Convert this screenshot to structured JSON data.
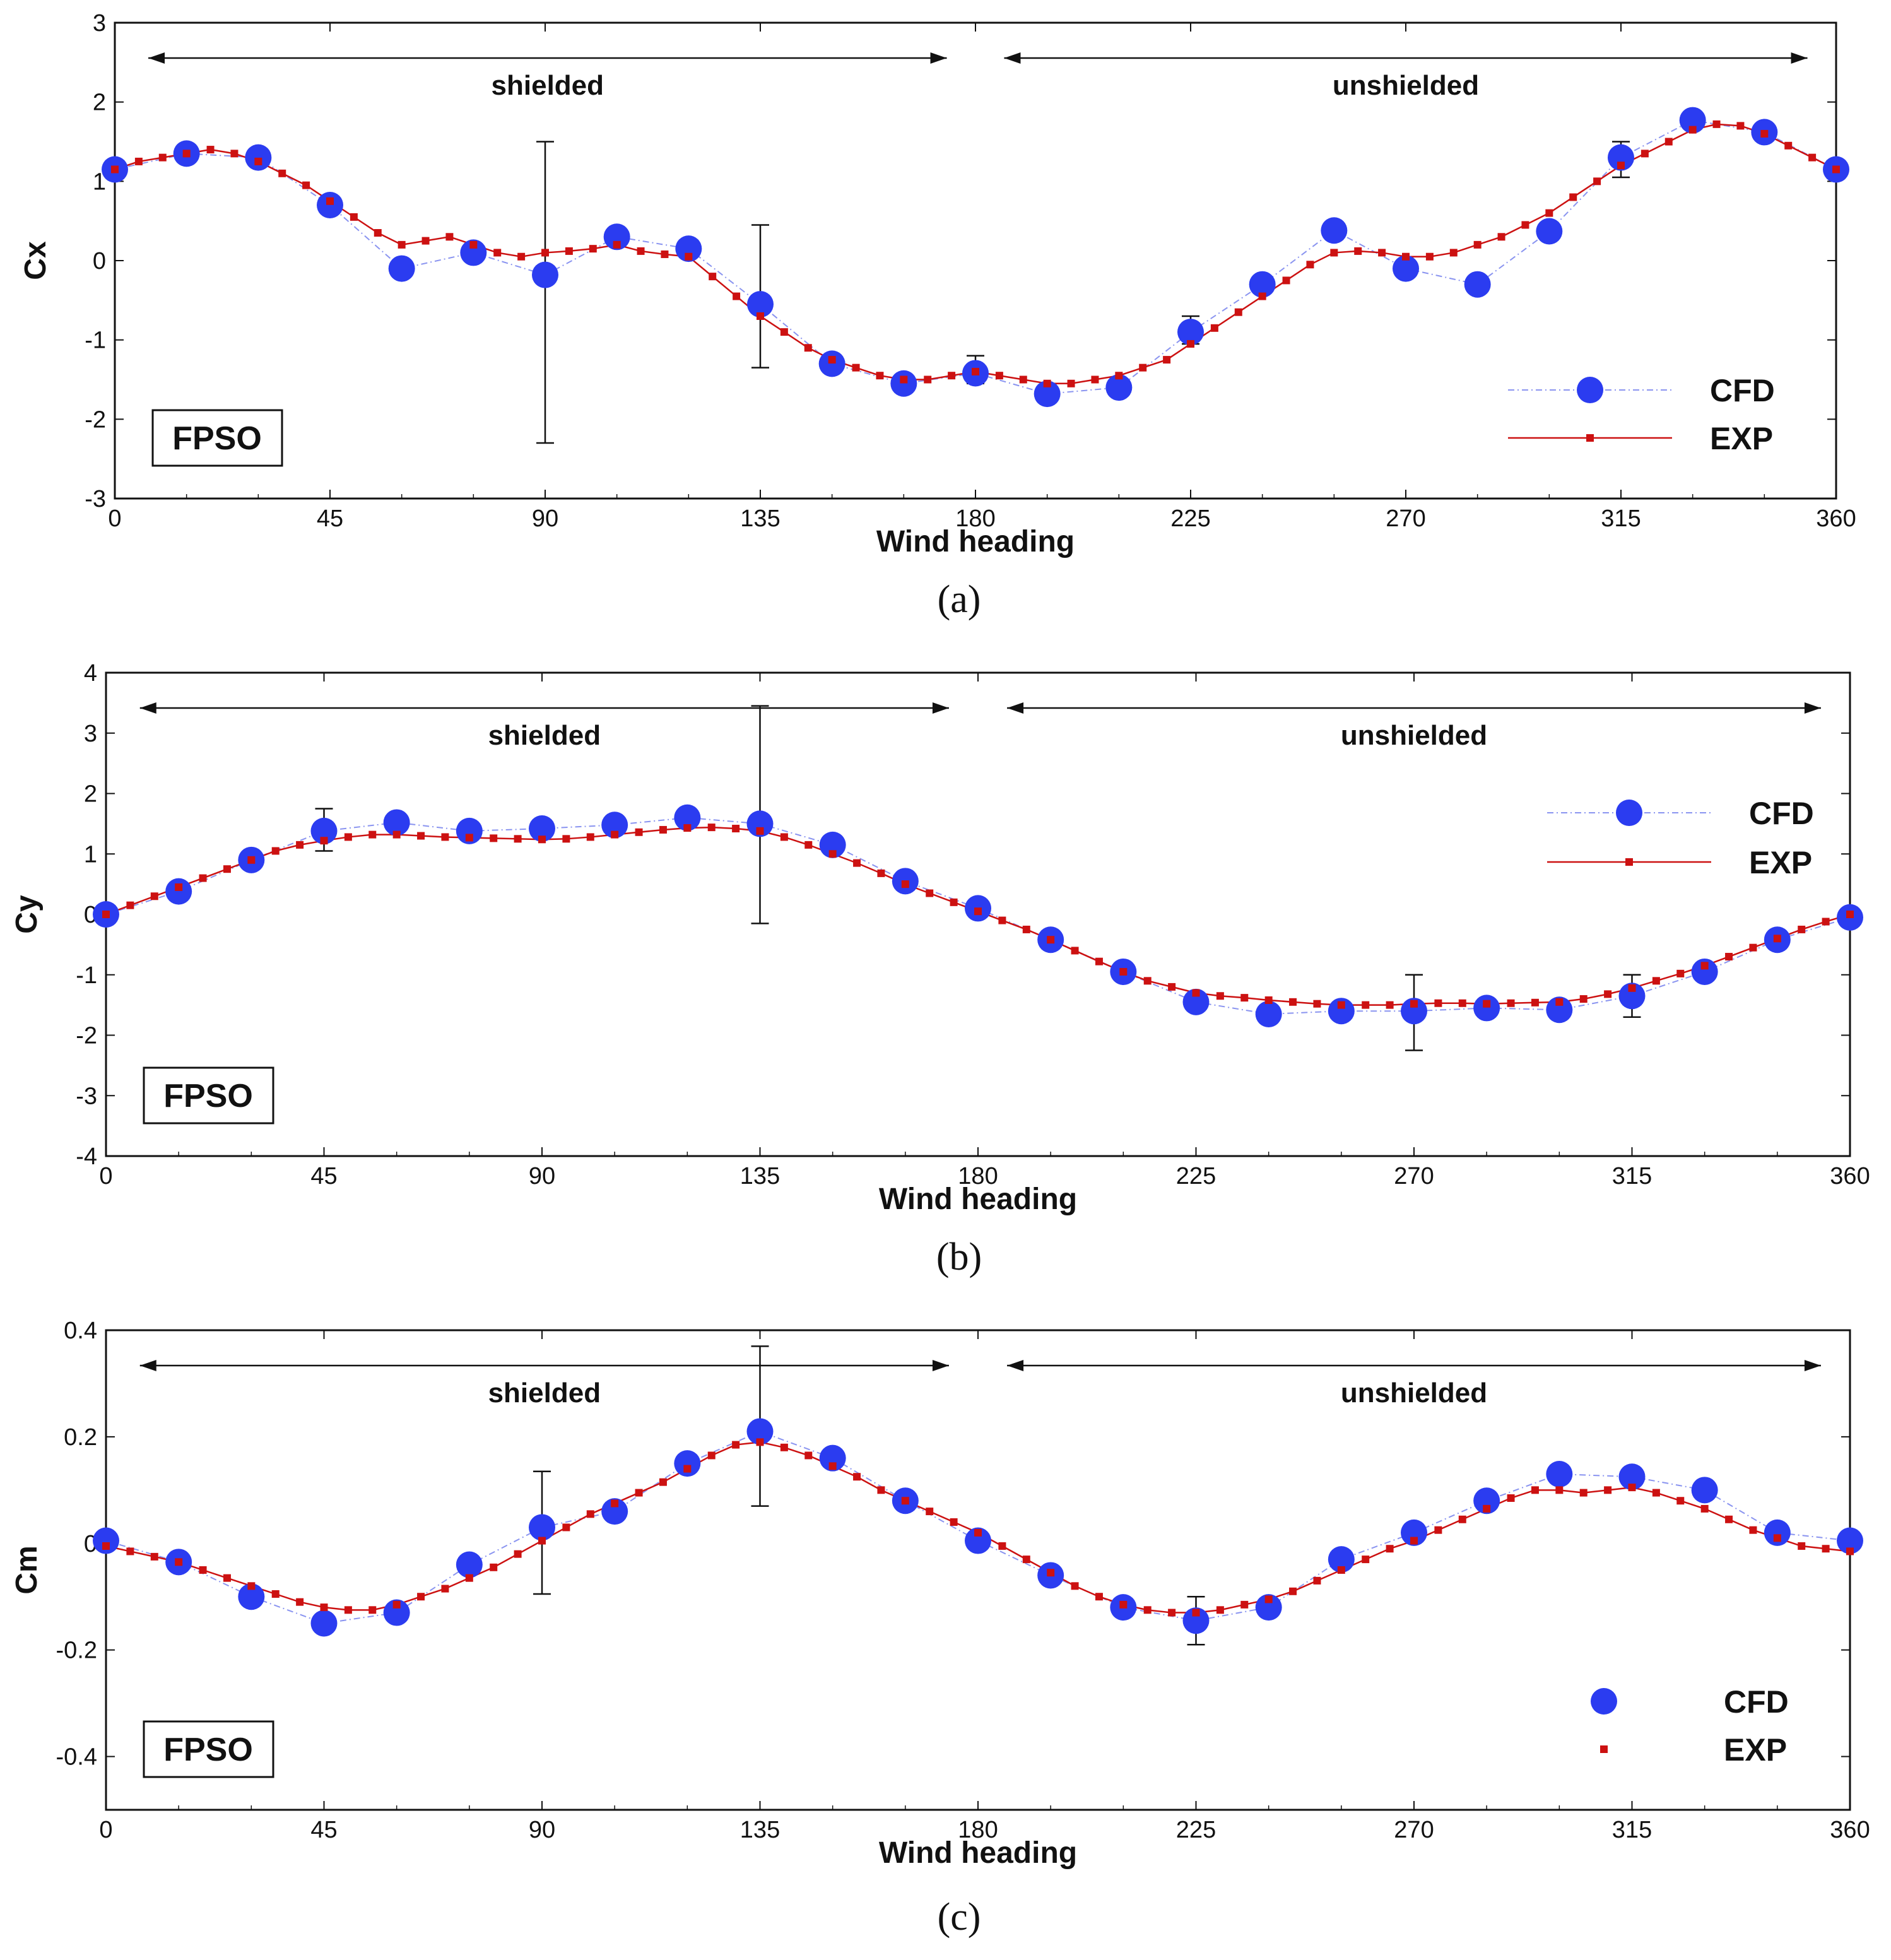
{
  "colors": {
    "cfd": "#2b3cf0",
    "cfd_line": "#8a94f0",
    "exp": "#cc1111",
    "axis": "#111111",
    "errorbar": "#111111"
  },
  "chart_data": [
    {
      "type": "scatter",
      "caption": "(a)",
      "caption_letter": "a",
      "xlabel": "Wind heading",
      "ylabel": "Cx",
      "xlim": [
        0,
        360
      ],
      "ylim": [
        -3,
        3
      ],
      "xticks": [
        "0",
        "45",
        "90",
        "135",
        "180",
        "225",
        "270",
        "315",
        "360"
      ],
      "yticks": [
        "-3",
        "-2",
        "-1",
        "0",
        "1",
        "2",
        "3"
      ],
      "regions": {
        "left": "shielded",
        "right": "unshielded"
      },
      "box_label": "FPSO",
      "legend_position": "bottom-right",
      "series": [
        {
          "name": "CFD",
          "x": [
            0,
            15,
            30,
            45,
            60,
            75,
            90,
            105,
            120,
            135,
            150,
            165,
            180,
            195,
            210,
            225,
            240,
            255,
            270,
            285,
            300,
            315,
            330,
            345,
            360
          ],
          "y": [
            1.15,
            1.35,
            1.3,
            0.7,
            -0.1,
            0.1,
            -0.18,
            0.3,
            0.15,
            -0.55,
            -1.3,
            -1.55,
            -1.42,
            -1.68,
            -1.6,
            -0.9,
            -0.3,
            0.38,
            -0.1,
            -0.3,
            0.37,
            1.3,
            1.77,
            1.62,
            1.15
          ]
        },
        {
          "name": "EXP",
          "x": [
            0,
            5,
            10,
            15,
            20,
            25,
            30,
            35,
            40,
            45,
            50,
            55,
            60,
            65,
            70,
            75,
            80,
            85,
            90,
            95,
            100,
            105,
            110,
            115,
            120,
            125,
            130,
            135,
            140,
            145,
            150,
            155,
            160,
            165,
            170,
            175,
            180,
            185,
            190,
            195,
            200,
            205,
            210,
            215,
            220,
            225,
            230,
            235,
            240,
            245,
            250,
            255,
            260,
            265,
            270,
            275,
            280,
            285,
            290,
            295,
            300,
            305,
            310,
            315,
            320,
            325,
            330,
            335,
            340,
            345,
            350,
            355,
            360
          ],
          "y": [
            1.15,
            1.25,
            1.3,
            1.35,
            1.4,
            1.35,
            1.25,
            1.1,
            0.95,
            0.75,
            0.55,
            0.35,
            0.2,
            0.25,
            0.3,
            0.2,
            0.1,
            0.05,
            0.1,
            0.12,
            0.15,
            0.2,
            0.12,
            0.08,
            0.05,
            -0.2,
            -0.45,
            -0.7,
            -0.9,
            -1.1,
            -1.25,
            -1.35,
            -1.45,
            -1.5,
            -1.5,
            -1.45,
            -1.4,
            -1.45,
            -1.5,
            -1.55,
            -1.55,
            -1.5,
            -1.45,
            -1.35,
            -1.25,
            -1.05,
            -0.85,
            -0.65,
            -0.45,
            -0.25,
            -0.05,
            0.1,
            0.12,
            0.1,
            0.05,
            0.05,
            0.1,
            0.2,
            0.3,
            0.45,
            0.6,
            0.8,
            1.0,
            1.2,
            1.35,
            1.5,
            1.65,
            1.72,
            1.7,
            1.6,
            1.45,
            1.3,
            1.15
          ]
        }
      ],
      "errorbars": [
        {
          "x": 90,
          "low": -2.3,
          "high": 1.5
        },
        {
          "x": 135,
          "low": -1.35,
          "high": 0.45
        },
        {
          "x": 180,
          "low": -1.55,
          "high": -1.2
        },
        {
          "x": 225,
          "low": -1.05,
          "high": -0.7
        },
        {
          "x": 315,
          "low": 1.05,
          "high": 1.5
        }
      ]
    },
    {
      "type": "scatter",
      "caption": "(b)",
      "caption_letter": "b",
      "xlabel": "Wind heading",
      "ylabel": "Cy",
      "xlim": [
        0,
        360
      ],
      "ylim": [
        -4,
        4
      ],
      "xticks": [
        "0",
        "45",
        "90",
        "135",
        "180",
        "225",
        "270",
        "315",
        "360"
      ],
      "yticks": [
        "-4",
        "-3",
        "-2",
        "-1",
        "0",
        "1",
        "2",
        "3",
        "4"
      ],
      "regions": {
        "left": "shielded",
        "right": "unshielded"
      },
      "box_label": "FPSO",
      "legend_position": "top-right",
      "series": [
        {
          "name": "CFD",
          "x": [
            0,
            15,
            30,
            45,
            60,
            75,
            90,
            105,
            120,
            135,
            150,
            165,
            180,
            195,
            210,
            225,
            240,
            255,
            270,
            285,
            300,
            315,
            330,
            345,
            360
          ],
          "y": [
            0.0,
            0.38,
            0.9,
            1.38,
            1.52,
            1.38,
            1.42,
            1.48,
            1.6,
            1.5,
            1.15,
            0.55,
            0.1,
            -0.42,
            -0.95,
            -1.45,
            -1.65,
            -1.6,
            -1.6,
            -1.55,
            -1.58,
            -1.35,
            -0.95,
            -0.42,
            -0.05
          ]
        },
        {
          "name": "EXP",
          "x": [
            0,
            5,
            10,
            15,
            20,
            25,
            30,
            35,
            40,
            45,
            50,
            55,
            60,
            65,
            70,
            75,
            80,
            85,
            90,
            95,
            100,
            105,
            110,
            115,
            120,
            125,
            130,
            135,
            140,
            145,
            150,
            155,
            160,
            165,
            170,
            175,
            180,
            185,
            190,
            195,
            200,
            205,
            210,
            215,
            220,
            225,
            230,
            235,
            240,
            245,
            250,
            255,
            260,
            265,
            270,
            275,
            280,
            285,
            290,
            295,
            300,
            305,
            310,
            315,
            320,
            325,
            330,
            335,
            340,
            345,
            350,
            355,
            360
          ],
          "y": [
            0.0,
            0.15,
            0.3,
            0.45,
            0.6,
            0.75,
            0.9,
            1.05,
            1.15,
            1.22,
            1.28,
            1.32,
            1.32,
            1.3,
            1.28,
            1.27,
            1.26,
            1.25,
            1.24,
            1.25,
            1.28,
            1.32,
            1.36,
            1.4,
            1.43,
            1.44,
            1.42,
            1.38,
            1.28,
            1.15,
            1.0,
            0.85,
            0.68,
            0.5,
            0.35,
            0.2,
            0.05,
            -0.1,
            -0.25,
            -0.42,
            -0.6,
            -0.78,
            -0.95,
            -1.1,
            -1.2,
            -1.3,
            -1.35,
            -1.38,
            -1.42,
            -1.45,
            -1.48,
            -1.5,
            -1.5,
            -1.5,
            -1.48,
            -1.47,
            -1.47,
            -1.48,
            -1.47,
            -1.46,
            -1.45,
            -1.4,
            -1.32,
            -1.22,
            -1.1,
            -0.98,
            -0.85,
            -0.7,
            -0.55,
            -0.4,
            -0.25,
            -0.12,
            0.0
          ]
        }
      ],
      "errorbars": [
        {
          "x": 45,
          "low": 1.05,
          "high": 1.75
        },
        {
          "x": 135,
          "low": -0.15,
          "high": 3.45
        },
        {
          "x": 270,
          "low": -2.25,
          "high": -1.0
        },
        {
          "x": 315,
          "low": -1.7,
          "high": -1.0
        }
      ]
    },
    {
      "type": "scatter",
      "caption": "(c)",
      "caption_letter": "c",
      "xlabel": "Wind heading",
      "ylabel": "Cm",
      "xlim": [
        0,
        360
      ],
      "ylim": [
        -0.5,
        0.4
      ],
      "xticks": [
        "0",
        "45",
        "90",
        "135",
        "180",
        "225",
        "270",
        "315",
        "360"
      ],
      "yticks": [
        "-0.4",
        "-0.2",
        "0",
        "0.2",
        "0.4"
      ],
      "ytick_values": [
        -0.4,
        -0.2,
        0,
        0.2,
        0.4
      ],
      "regions": {
        "left": "shielded",
        "right": "unshielded"
      },
      "box_label": "FPSO",
      "legend_position": "bottom-right",
      "series": [
        {
          "name": "CFD",
          "x": [
            0,
            15,
            30,
            45,
            60,
            75,
            90,
            105,
            120,
            135,
            150,
            165,
            180,
            195,
            210,
            225,
            240,
            255,
            270,
            285,
            300,
            315,
            330,
            345,
            360
          ],
          "y": [
            0.005,
            -0.035,
            -0.1,
            -0.15,
            -0.13,
            -0.04,
            0.03,
            0.06,
            0.15,
            0.21,
            0.16,
            0.08,
            0.005,
            -0.06,
            -0.12,
            -0.145,
            -0.12,
            -0.03,
            0.02,
            0.08,
            0.13,
            0.125,
            0.1,
            0.02,
            0.005
          ]
        },
        {
          "name": "EXP",
          "x": [
            0,
            5,
            10,
            15,
            20,
            25,
            30,
            35,
            40,
            45,
            50,
            55,
            60,
            65,
            70,
            75,
            80,
            85,
            90,
            95,
            100,
            105,
            110,
            115,
            120,
            125,
            130,
            135,
            140,
            145,
            150,
            155,
            160,
            165,
            170,
            175,
            180,
            185,
            190,
            195,
            200,
            205,
            210,
            215,
            220,
            225,
            230,
            235,
            240,
            245,
            250,
            255,
            260,
            265,
            270,
            275,
            280,
            285,
            290,
            295,
            300,
            305,
            310,
            315,
            320,
            325,
            330,
            335,
            340,
            345,
            350,
            355,
            360
          ],
          "y": [
            -0.005,
            -0.015,
            -0.025,
            -0.035,
            -0.05,
            -0.065,
            -0.08,
            -0.095,
            -0.11,
            -0.12,
            -0.125,
            -0.125,
            -0.115,
            -0.1,
            -0.085,
            -0.065,
            -0.045,
            -0.02,
            0.005,
            0.03,
            0.055,
            0.075,
            0.095,
            0.115,
            0.14,
            0.165,
            0.185,
            0.19,
            0.18,
            0.165,
            0.145,
            0.125,
            0.1,
            0.08,
            0.06,
            0.04,
            0.02,
            -0.005,
            -0.03,
            -0.055,
            -0.08,
            -0.1,
            -0.115,
            -0.125,
            -0.13,
            -0.13,
            -0.125,
            -0.115,
            -0.105,
            -0.09,
            -0.07,
            -0.05,
            -0.03,
            -0.01,
            0.005,
            0.025,
            0.045,
            0.065,
            0.085,
            0.1,
            0.1,
            0.095,
            0.1,
            0.105,
            0.095,
            0.08,
            0.065,
            0.045,
            0.025,
            0.01,
            -0.005,
            -0.01,
            -0.015
          ]
        }
      ],
      "errorbars": [
        {
          "x": 90,
          "low": -0.095,
          "high": 0.135
        },
        {
          "x": 135,
          "low": 0.07,
          "high": 0.37
        },
        {
          "x": 225,
          "low": -0.19,
          "high": -0.1
        }
      ]
    }
  ]
}
